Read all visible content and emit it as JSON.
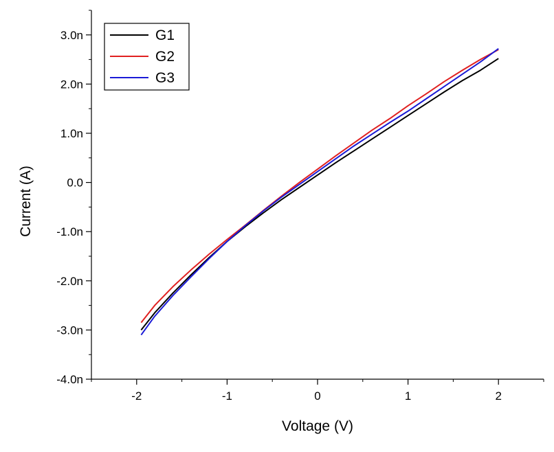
{
  "chart_data": {
    "type": "line",
    "xlabel": "Voltage (V)",
    "ylabel": "Current (A)",
    "xlim": [
      -2.5,
      2.5
    ],
    "ylim": [
      -4.0,
      3.5
    ],
    "x_ticks": [
      -2,
      -1,
      0,
      1,
      2
    ],
    "x_tick_labels": [
      "-2",
      "-1",
      "0",
      "1",
      "2"
    ],
    "y_ticks": [
      -4.0,
      -3.0,
      -2.0,
      -1.0,
      0.0,
      1.0,
      2.0,
      3.0
    ],
    "y_tick_labels": [
      "-4.0n",
      "-3.0n",
      "-2.0n",
      "-1.0n",
      "0.0",
      "1.0n",
      "2.0n",
      "3.0n"
    ],
    "y_unit_scale": "1e-9",
    "grid": false,
    "legend_position": "top-left",
    "series": [
      {
        "name": "G1",
        "color": "#000000",
        "x": [
          -1.95,
          -1.8,
          -1.6,
          -1.4,
          -1.2,
          -1.0,
          -0.8,
          -0.6,
          -0.4,
          -0.2,
          0.0,
          0.2,
          0.4,
          0.6,
          0.8,
          1.0,
          1.2,
          1.4,
          1.6,
          1.8,
          2.0
        ],
        "y": [
          -3.0,
          -2.65,
          -2.25,
          -1.88,
          -1.53,
          -1.2,
          -0.9,
          -0.62,
          -0.35,
          -0.1,
          0.15,
          0.4,
          0.64,
          0.88,
          1.12,
          1.36,
          1.6,
          1.84,
          2.07,
          2.28,
          2.52
        ]
      },
      {
        "name": "G2",
        "color": "#e02020",
        "x": [
          -1.95,
          -1.8,
          -1.6,
          -1.4,
          -1.2,
          -1.0,
          -0.8,
          -0.6,
          -0.4,
          -0.2,
          0.0,
          0.2,
          0.4,
          0.6,
          0.8,
          1.0,
          1.2,
          1.4,
          1.6,
          1.8,
          2.0
        ],
        "y": [
          -2.85,
          -2.5,
          -2.12,
          -1.78,
          -1.46,
          -1.16,
          -0.87,
          -0.57,
          -0.28,
          0.0,
          0.27,
          0.54,
          0.8,
          1.06,
          1.3,
          1.56,
          1.8,
          2.05,
          2.28,
          2.5,
          2.7
        ]
      },
      {
        "name": "G3",
        "color": "#1a1ad6",
        "x": [
          -1.95,
          -1.8,
          -1.6,
          -1.4,
          -1.2,
          -1.0,
          -0.8,
          -0.6,
          -0.4,
          -0.2,
          0.0,
          0.2,
          0.4,
          0.6,
          0.8,
          1.0,
          1.2,
          1.4,
          1.6,
          1.8,
          2.0
        ],
        "y": [
          -3.1,
          -2.72,
          -2.3,
          -1.92,
          -1.55,
          -1.2,
          -0.88,
          -0.58,
          -0.3,
          -0.04,
          0.22,
          0.48,
          0.74,
          0.98,
          1.22,
          1.45,
          1.7,
          1.95,
          2.2,
          2.45,
          2.72
        ]
      }
    ]
  }
}
